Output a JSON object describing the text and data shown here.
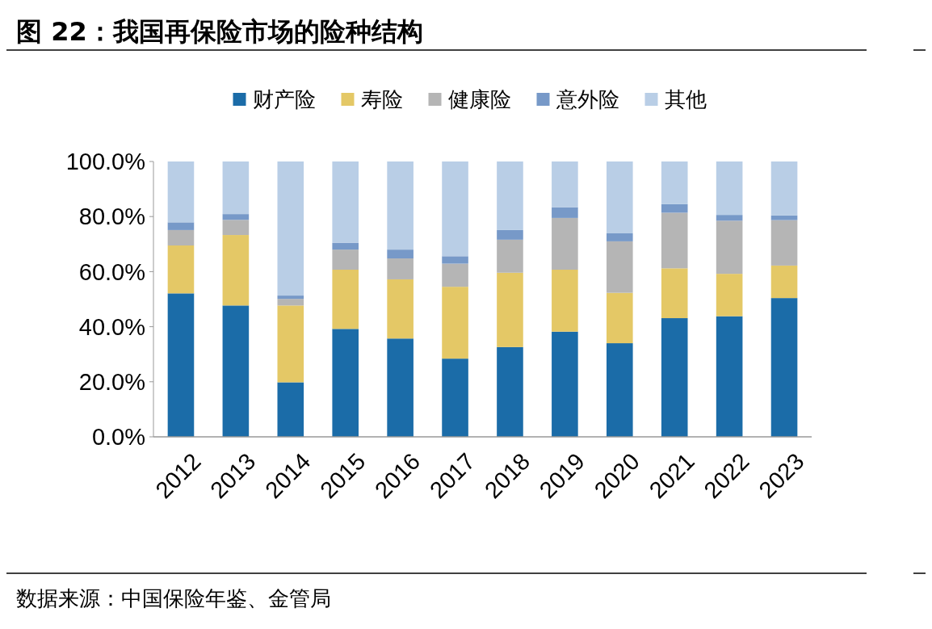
{
  "chart_data": {
    "type": "bar",
    "stacked": true,
    "title": "图 22：我国再保险市场的险种结构",
    "categories": [
      "2012",
      "2013",
      "2014",
      "2015",
      "2016",
      "2017",
      "2018",
      "2019",
      "2020",
      "2021",
      "2022",
      "2023"
    ],
    "series": [
      {
        "name": "财产险",
        "color": "#1b6ca8",
        "values": [
          52.1,
          47.7,
          19.8,
          39.2,
          35.7,
          28.4,
          32.6,
          38.2,
          34.0,
          43.1,
          43.8,
          50.4
        ]
      },
      {
        "name": "寿险",
        "color": "#e4c866",
        "values": [
          17.4,
          25.6,
          27.9,
          21.5,
          21.5,
          26.1,
          27.0,
          22.5,
          18.3,
          18.1,
          15.4,
          11.8
        ]
      },
      {
        "name": "健康险",
        "color": "#b5b5b5",
        "values": [
          5.6,
          5.5,
          2.4,
          7.3,
          7.6,
          8.4,
          12.0,
          18.8,
          18.7,
          20.2,
          19.3,
          16.5
        ]
      },
      {
        "name": "意外险",
        "color": "#7799c8",
        "values": [
          2.8,
          2.1,
          1.2,
          2.4,
          3.2,
          2.7,
          3.5,
          3.9,
          2.9,
          3.1,
          2.1,
          1.7
        ]
      },
      {
        "name": "其他",
        "color": "#b9cee6",
        "values": [
          22.1,
          19.1,
          48.7,
          29.6,
          32.0,
          34.4,
          24.9,
          16.6,
          26.1,
          15.5,
          19.4,
          19.6
        ]
      }
    ],
    "ylim": [
      0,
      100
    ],
    "yticks": [
      {
        "value": 0,
        "label": "0.0%"
      },
      {
        "value": 20,
        "label": "20.0%"
      },
      {
        "value": 40,
        "label": "40.0%"
      },
      {
        "value": 60,
        "label": "60.0%"
      },
      {
        "value": 80,
        "label": "80.0%"
      },
      {
        "value": 100,
        "label": "100.0%"
      }
    ],
    "grid": false,
    "legend": "top",
    "annotations": [
      "数据来源：中国保险年鉴、金管局"
    ]
  }
}
